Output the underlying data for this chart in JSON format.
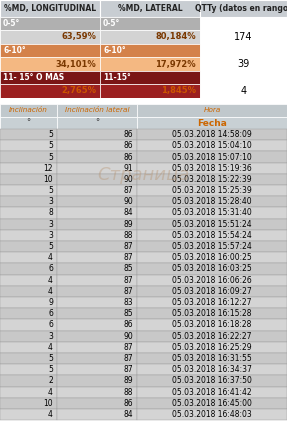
{
  "header1": [
    "%MD, LONGITUDINAL",
    "%MD, LATERAL",
    "QTTy (datos en rango)"
  ],
  "stats": [
    {
      "long_label": "0-5°",
      "lat_label": "0-5°",
      "long_val": "63,59%",
      "lat_val": "80,184%",
      "qty": "174"
    },
    {
      "long_label": "6-10°",
      "lat_label": "6-10°",
      "long_val": "34,101%",
      "lat_val": "17,972%",
      "qty": "39"
    },
    {
      "long_label": "11- 15° O MAS",
      "lat_label": "11-15°",
      "long_val": "2,765%",
      "lat_val": "1,845%",
      "qty": "4"
    }
  ],
  "stat_label_colors": [
    "#b0b0b0",
    "#d4824a",
    "#7a1515"
  ],
  "stat_val_colors": [
    "#d3d3d3",
    "#f4b882",
    "#9b2020"
  ],
  "stat_text_colors": [
    "#7a3800",
    "#7a3800",
    "#cc5500"
  ],
  "col_headers": [
    "Inclinación",
    "Inclinación lateral",
    "Hora"
  ],
  "col_subheaders": [
    "°",
    "°",
    "Fecha"
  ],
  "rows": [
    [
      5,
      86,
      "05.03.2018 14:58:09"
    ],
    [
      5,
      86,
      "05.03.2018 15:04:10"
    ],
    [
      5,
      86,
      "05.03.2018 15:07:10"
    ],
    [
      12,
      91,
      "05.03.2018 15:19:36"
    ],
    [
      10,
      90,
      "05.03.2018 15:22:39"
    ],
    [
      5,
      87,
      "05.03.2018 15:25:39"
    ],
    [
      3,
      90,
      "05.03.2018 15:28:40"
    ],
    [
      8,
      84,
      "05.03.2018 15:31:40"
    ],
    [
      3,
      89,
      "05.03.2018 15:51:24"
    ],
    [
      3,
      88,
      "05.03.2018 15:54:24"
    ],
    [
      5,
      87,
      "05.03.2018 15:57:24"
    ],
    [
      4,
      87,
      "05.03.2018 16:00:25"
    ],
    [
      6,
      85,
      "05.03.2018 16:03:25"
    ],
    [
      4,
      87,
      "05.03.2018 16:06:26"
    ],
    [
      4,
      87,
      "05.03.2018 16:09:27"
    ],
    [
      9,
      83,
      "05.03.2018 16:12:27"
    ],
    [
      6,
      85,
      "05.03.2018 16:15:28"
    ],
    [
      6,
      86,
      "05.03.2018 16:18:28"
    ],
    [
      3,
      90,
      "05.03.2018 16:22:27"
    ],
    [
      4,
      87,
      "05.03.2018 16:25:29"
    ],
    [
      5,
      87,
      "05.03.2018 16:31:55"
    ],
    [
      5,
      87,
      "05.03.2018 16:34:37"
    ],
    [
      2,
      89,
      "05.03.2018 16:37:50"
    ],
    [
      4,
      88,
      "05.03.2018 16:41:42"
    ],
    [
      10,
      86,
      "05.03.2018 16:45:00"
    ],
    [
      4,
      84,
      "05.03.2018 16:48:03"
    ]
  ],
  "row_bg_even": "#c8c8c8",
  "row_bg_odd": "#d4d4d4",
  "header_bg": "#c0c8cc",
  "subheader_bg": "#c8d0d4",
  "top_header_bg": "#c8cdd2",
  "qty_bg": "#ffffff",
  "watermark": "Страница",
  "watermark_color": [
    0.7,
    0.55,
    0.4
  ],
  "watermark_alpha": 0.35
}
